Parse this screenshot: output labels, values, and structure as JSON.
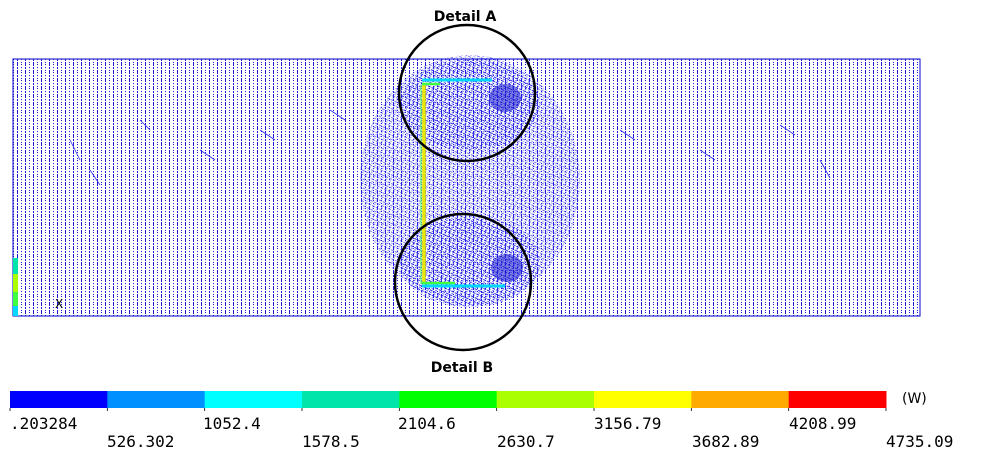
{
  "detail_labels": {
    "top": "Detail A",
    "bottom": "Detail B"
  },
  "axis_marker": "X",
  "legend": {
    "unit": "(W)",
    "colors": [
      "#0000ff",
      "#0090ff",
      "#00ffff",
      "#00e6aa",
      "#00ff00",
      "#aaff00",
      "#ffff00",
      "#ffaa00",
      "#ff0000"
    ],
    "upper_ticks": [
      ".203284",
      "1052.4",
      "2104.6",
      "3156.79",
      "4208.99"
    ],
    "lower_ticks": [
      "526.302",
      "1578.5",
      "2630.7",
      "3682.89",
      "4735.09"
    ]
  },
  "colors": {
    "mesh": "#1010d8",
    "yellow_bar": "#e8e800",
    "cyan_edge": "#00d8ff",
    "green_edge": "#40ff40",
    "circle": "#000000"
  }
}
